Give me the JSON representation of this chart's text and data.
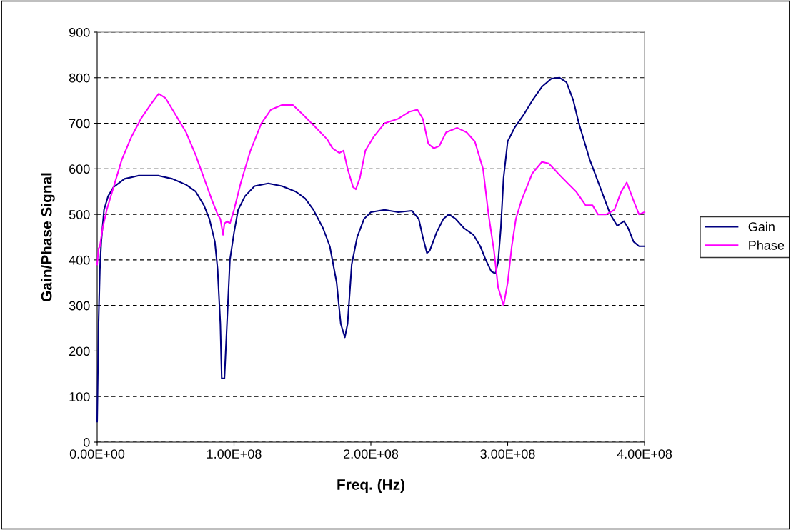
{
  "chart_data": {
    "type": "line",
    "xlabel": "Freq. (Hz)",
    "ylabel": "Gain/Phase Signal",
    "xlim": [
      0,
      400000000.0
    ],
    "xticks": [
      {
        "value": 0,
        "label": "0.00E+00"
      },
      {
        "value": 100000000.0,
        "label": "1.00E+08"
      },
      {
        "value": 200000000.0,
        "label": "2.00E+08"
      },
      {
        "value": 300000000.0,
        "label": "3.00E+08"
      },
      {
        "value": 400000000.0,
        "label": "4.00E+08"
      }
    ],
    "ylim": [
      0,
      900
    ],
    "yticks": [
      0,
      100,
      200,
      300,
      400,
      500,
      600,
      700,
      800,
      900
    ],
    "grid": "y",
    "legend": "right",
    "line_style": "solid",
    "marker": "none",
    "series": [
      {
        "name": "Gain",
        "color": "#000080",
        "x": [
          0,
          1000000.0,
          2000000.0,
          3000000.0,
          5000000.0,
          8000000.0,
          12000000.0,
          20000000.0,
          30000000.0,
          45000000.0,
          55000000.0,
          65000000.0,
          72000000.0,
          78000000.0,
          82000000.0,
          86000000.0,
          88000000.0,
          90000000.0,
          91000000.0,
          93000000.0,
          95000000.0,
          97000000.0,
          100000000.0,
          103000000.0,
          108000000.0,
          115000000.0,
          125000000.0,
          135000000.0,
          145000000.0,
          152000000.0,
          158000000.0,
          165000000.0,
          170000000.0,
          175000000.0,
          178000000.0,
          181000000.0,
          183000000.0,
          186000000.0,
          190000000.0,
          195000000.0,
          200000000.0,
          210000000.0,
          220000000.0,
          230000000.0,
          235000000.0,
          238000000.0,
          241000000.0,
          243000000.0,
          248000000.0,
          253000000.0,
          257000000.0,
          262000000.0,
          268000000.0,
          275000000.0,
          280000000.0,
          284000000.0,
          288000000.0,
          291000000.0,
          293000000.0,
          295000000.0,
          297000000.0,
          300000000.0,
          305000000.0,
          312000000.0,
          318000000.0,
          325000000.0,
          332000000.0,
          338000000.0,
          343000000.0,
          348000000.0,
          352000000.0,
          356000000.0,
          360000000.0,
          365000000.0,
          370000000.0,
          375000000.0,
          380000000.0,
          385000000.0,
          388000000.0,
          392000000.0,
          396000000.0,
          400000000.0
        ],
        "values": [
          45,
          260,
          380,
          440,
          510,
          540,
          560,
          578,
          585,
          585,
          578,
          565,
          550,
          520,
          490,
          440,
          380,
          260,
          140,
          140,
          270,
          400,
          460,
          510,
          540,
          562,
          568,
          562,
          550,
          535,
          510,
          470,
          430,
          350,
          260,
          230,
          260,
          390,
          450,
          490,
          505,
          510,
          505,
          508,
          490,
          450,
          415,
          420,
          460,
          490,
          500,
          490,
          470,
          455,
          430,
          400,
          375,
          370,
          395,
          470,
          580,
          660,
          690,
          720,
          750,
          780,
          798,
          800,
          790,
          750,
          700,
          660,
          620,
          580,
          540,
          500,
          475,
          485,
          470,
          440,
          430,
          430
        ]
      },
      {
        "name": "Phase",
        "color": "#ff00ff",
        "x": [
          0,
          1000000.0,
          2000000.0,
          4000000.0,
          7000000.0,
          12000000.0,
          18000000.0,
          25000000.0,
          32000000.0,
          40000000.0,
          45000000.0,
          50000000.0,
          57000000.0,
          65000000.0,
          72000000.0,
          78000000.0,
          84000000.0,
          88000000.0,
          90000000.0,
          92000000.0,
          93000000.0,
          95000000.0,
          97000000.0,
          100000000.0,
          105000000.0,
          112000000.0,
          120000000.0,
          127000000.0,
          135000000.0,
          143000000.0,
          150000000.0,
          160000000.0,
          168000000.0,
          172000000.0,
          177000000.0,
          180000000.0,
          183000000.0,
          187000000.0,
          189000000.0,
          192000000.0,
          196000000.0,
          202000000.0,
          210000000.0,
          220000000.0,
          228000000.0,
          234000000.0,
          238000000.0,
          242000000.0,
          246000000.0,
          250000000.0,
          255000000.0,
          263000000.0,
          270000000.0,
          276000000.0,
          282000000.0,
          286000000.0,
          290000000.0,
          293000000.0,
          297000000.0,
          300000000.0,
          303000000.0,
          306000000.0,
          310000000.0,
          318000000.0,
          325000000.0,
          330000000.0,
          340000000.0,
          350000000.0,
          357000000.0,
          362000000.0,
          366000000.0,
          372000000.0,
          378000000.0,
          383000000.0,
          387000000.0,
          392000000.0,
          396000000.0,
          400000000.0
        ],
        "values": [
          390,
          425,
          430,
          470,
          510,
          560,
          620,
          670,
          710,
          745,
          765,
          755,
          720,
          680,
          630,
          580,
          530,
          500,
          490,
          455,
          480,
          485,
          480,
          510,
          570,
          640,
          700,
          730,
          740,
          740,
          720,
          690,
          665,
          645,
          635,
          640,
          600,
          560,
          555,
          580,
          640,
          670,
          700,
          710,
          725,
          730,
          710,
          655,
          645,
          650,
          680,
          690,
          680,
          660,
          600,
          500,
          420,
          340,
          300,
          350,
          430,
          490,
          530,
          590,
          615,
          612,
          580,
          550,
          520,
          520,
          500,
          500,
          510,
          550,
          570,
          530,
          500,
          505
        ]
      }
    ]
  }
}
